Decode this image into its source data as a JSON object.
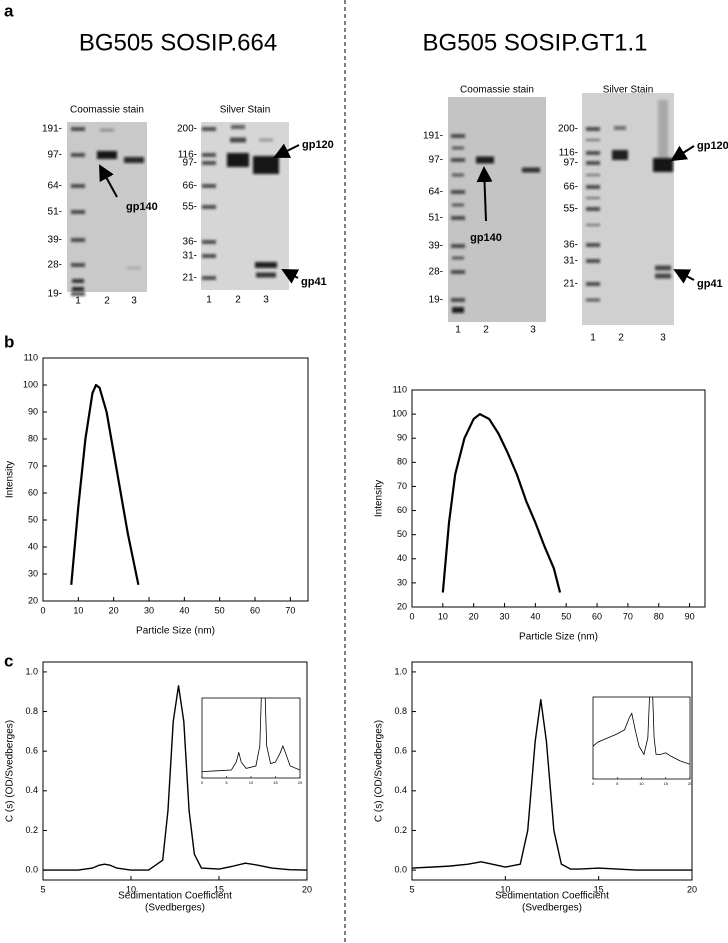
{
  "panel_labels": [
    "a",
    "b",
    "c"
  ],
  "titles": [
    "BG505 SOSIP.664",
    "BG505 SOSIP.GT1.1"
  ],
  "gels": [
    {
      "title": "Coomassie stain",
      "markers": [
        "191-",
        "97-",
        "64-",
        "51-",
        "39-",
        "28-",
        "19-"
      ],
      "lanes": [
        "1",
        "2",
        "3"
      ],
      "annotations": [
        "gp140"
      ]
    },
    {
      "title": "Silver Stain",
      "markers": [
        "200-",
        "116-",
        "97-",
        "66-",
        "55-",
        "36-",
        "31-",
        "21-"
      ],
      "lanes": [
        "1",
        "2",
        "3"
      ],
      "annotations": [
        "gp120",
        "gp41"
      ]
    },
    {
      "title": "Coomassie stain",
      "markers": [
        "191-",
        "97-",
        "64-",
        "51-",
        "39-",
        "28-",
        "19-"
      ],
      "lanes": [
        "1",
        "2",
        "3"
      ],
      "annotations": [
        "gp140"
      ]
    },
    {
      "title": "Silver Stain",
      "markers": [
        "200-",
        "116-",
        "97-",
        "66-",
        "55-",
        "36-",
        "31-",
        "21-"
      ],
      "lanes": [
        "1",
        "2",
        "3"
      ],
      "annotations": [
        "gp120",
        "gp41"
      ]
    }
  ],
  "chart_data": [
    {
      "type": "line",
      "xlabel": [
        "Particle Size (nm)"
      ],
      "ylabel": "Intensity",
      "color": "#000000",
      "x": [
        8,
        10,
        12,
        14,
        15,
        16,
        18,
        20,
        22,
        24,
        27
      ],
      "values": [
        26,
        55,
        80,
        97,
        100,
        99,
        90,
        75,
        60,
        45,
        26
      ],
      "xlim": [
        0,
        75
      ],
      "ylim": [
        20,
        110
      ],
      "xticks": [
        0,
        10,
        20,
        30,
        40,
        50,
        60,
        70
      ],
      "yticks": [
        20,
        30,
        40,
        50,
        60,
        70,
        80,
        90,
        100,
        110
      ]
    },
    {
      "type": "line",
      "xlabel": [
        "Particle Size (nm)"
      ],
      "ylabel": "Intensity",
      "color": "#000000",
      "x": [
        10,
        12,
        14,
        17,
        20,
        22,
        25,
        28,
        31,
        34,
        37,
        40,
        43,
        46,
        48
      ],
      "values": [
        26,
        55,
        75,
        90,
        98,
        100,
        98,
        92,
        84,
        75,
        64,
        55,
        45,
        36,
        26
      ],
      "xlim": [
        0,
        95
      ],
      "ylim": [
        20,
        110
      ],
      "xticks": [
        0,
        10,
        20,
        30,
        40,
        50,
        60,
        70,
        80,
        90
      ],
      "yticks": [
        20,
        30,
        40,
        50,
        60,
        70,
        80,
        90,
        100,
        110
      ]
    },
    {
      "type": "line",
      "xlabel": [
        "Sedimentation Coefficient",
        "(Svedberges)"
      ],
      "ylabel": "C (s) (OD/Svedberges)",
      "color": "#000000",
      "x": [
        5,
        6,
        7,
        7.8,
        8.2,
        8.5,
        8.8,
        9.2,
        10,
        11,
        11.8,
        12.1,
        12.4,
        12.7,
        13.0,
        13.3,
        13.6,
        14,
        15,
        15.8,
        16.5,
        17.2,
        18,
        19,
        20
      ],
      "values": [
        0,
        0,
        0,
        0.01,
        0.025,
        0.03,
        0.025,
        0.01,
        0,
        0,
        0.05,
        0.3,
        0.75,
        0.93,
        0.75,
        0.3,
        0.08,
        0.01,
        0.005,
        0.02,
        0.035,
        0.025,
        0.01,
        0.002,
        0
      ],
      "xlim": [
        5,
        20
      ],
      "ylim": [
        -0.05,
        1.05
      ],
      "xticks": [
        5,
        10,
        15,
        20
      ],
      "yticks": [
        {
          "value": 0,
          "label": "0.0"
        },
        0.2,
        0.4,
        0.6,
        0.8,
        {
          "value": 1,
          "label": "1.0"
        }
      ],
      "inset": {
        "x": [
          0,
          3,
          6,
          7,
          7.5,
          8,
          9,
          11,
          11.8,
          12.2,
          12.8,
          13.2,
          14,
          15,
          16,
          16.5,
          17,
          18,
          20
        ],
        "values": [
          0.08,
          0.09,
          0.1,
          0.2,
          0.32,
          0.2,
          0.12,
          0.15,
          0.4,
          1.2,
          1.2,
          0.4,
          0.18,
          0.2,
          0.32,
          0.4,
          0.32,
          0.15,
          0.1
        ],
        "xlim": [
          0,
          20
        ],
        "ylim": [
          0,
          1
        ],
        "xticks": [
          0,
          5,
          10,
          15,
          20
        ]
      }
    },
    {
      "type": "line",
      "xlabel": [
        "Sedimentation Coefficient",
        "(Svedberges)"
      ],
      "ylabel": "C (s) (OD/Svedberges)",
      "color": "#000000",
      "x": [
        5,
        6,
        7,
        8,
        8.7,
        9.3,
        10,
        10.8,
        11.2,
        11.6,
        11.9,
        12.2,
        12.6,
        13,
        13.5,
        14,
        15,
        16,
        17,
        18,
        19,
        20
      ],
      "values": [
        0.01,
        0.015,
        0.02,
        0.03,
        0.042,
        0.03,
        0.015,
        0.03,
        0.2,
        0.65,
        0.86,
        0.65,
        0.2,
        0.03,
        0.005,
        0.005,
        0.01,
        0.005,
        0,
        0,
        0,
        0
      ],
      "xlim": [
        5,
        20
      ],
      "ylim": [
        -0.05,
        1.05
      ],
      "xticks": [
        5,
        10,
        15,
        20
      ],
      "yticks": [
        {
          "value": 0,
          "label": "0.0"
        },
        0.2,
        0.4,
        0.6,
        0.8,
        {
          "value": 1,
          "label": "1.0"
        }
      ],
      "inset": {
        "x": [
          0,
          1,
          3,
          5,
          6.5,
          7.5,
          8,
          8.7,
          9.5,
          10.5,
          11.3,
          11.8,
          12.2,
          12.6,
          13,
          14,
          15,
          16,
          18,
          20
        ],
        "values": [
          0.4,
          0.45,
          0.5,
          0.55,
          0.6,
          0.75,
          0.8,
          0.6,
          0.4,
          0.3,
          0.5,
          1.2,
          1.2,
          0.5,
          0.3,
          0.3,
          0.32,
          0.28,
          0.22,
          0.18
        ],
        "xlim": [
          0,
          20
        ],
        "ylim": [
          0,
          1
        ],
        "xticks": [
          0,
          5,
          10,
          15,
          20
        ]
      }
    }
  ]
}
